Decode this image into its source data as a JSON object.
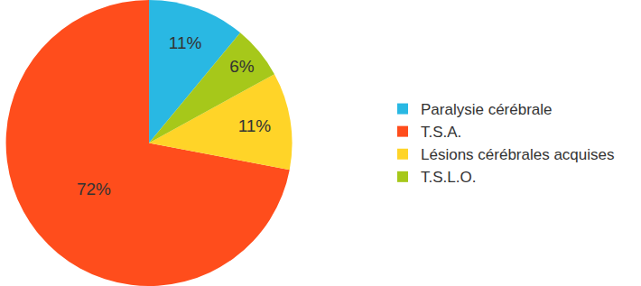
{
  "chart_data": {
    "type": "pie",
    "categories": [
      "Paralysie cérébrale",
      "T.S.A.",
      "Lésions cérébrales acquises",
      "T.S.L.O."
    ],
    "values": [
      11,
      72,
      11,
      6
    ],
    "value_labels": [
      "11%",
      "72%",
      "11%",
      "6%"
    ],
    "colors": [
      "#29b8e3",
      "#ff4d1c",
      "#ffd428",
      "#a6c81a"
    ],
    "data_labels": true,
    "legend": "right"
  }
}
